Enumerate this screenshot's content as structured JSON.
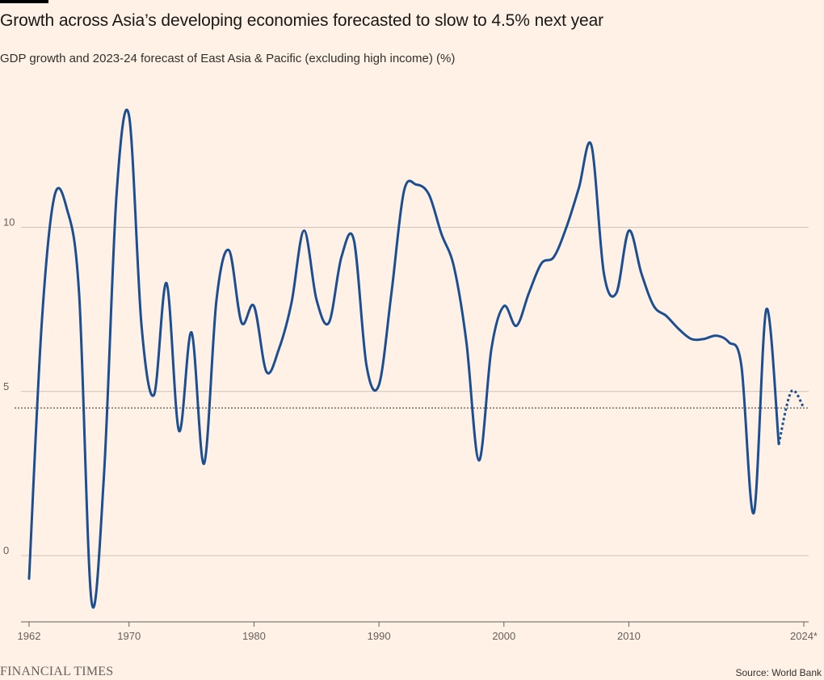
{
  "title": "Growth across Asia’s developing economies forecasted to slow to 4.5% next year",
  "subtitle": "GDP growth and 2023-24 forecast of East Asia & Pacific (excluding high income) (%)",
  "brand": "FINANCIAL TIMES",
  "source": "Source: World Bank",
  "colors": {
    "background": "#FFF1E5",
    "line": "#1B4F91",
    "grid": "#CFC4B9",
    "reference": "#33302E"
  },
  "chart_data": {
    "type": "line",
    "title": "Growth across Asia’s developing economies forecasted to slow to 4.5% next year",
    "subtitle": "GDP growth and 2023-24 forecast of East Asia & Pacific (excluding high income) (%)",
    "xlabel": "",
    "ylabel": "",
    "xlim": [
      1962,
      2024
    ],
    "ylim": [
      -2,
      14
    ],
    "y_ticks": [
      0,
      5,
      10
    ],
    "x_ticks": [
      {
        "value": 1962,
        "label": "1962"
      },
      {
        "value": 1970,
        "label": "1970"
      },
      {
        "value": 1980,
        "label": "1980"
      },
      {
        "value": 1990,
        "label": "1990"
      },
      {
        "value": 2000,
        "label": "2000"
      },
      {
        "value": 2010,
        "label": "2010"
      },
      {
        "value": 2024,
        "label": "2024*"
      }
    ],
    "grid": true,
    "reference_line": {
      "value": 4.5,
      "style": "dotted"
    },
    "series": [
      {
        "style": "solid",
        "x": [
          1962,
          1963,
          1964,
          1965,
          1966,
          1967,
          1968,
          1969,
          1970,
          1971,
          1972,
          1973,
          1974,
          1975,
          1976,
          1977,
          1978,
          1979,
          1980,
          1981,
          1982,
          1983,
          1984,
          1985,
          1986,
          1987,
          1988,
          1989,
          1990,
          1991,
          1992,
          1993,
          1994,
          1995,
          1996,
          1997,
          1998,
          1999,
          2000,
          2001,
          2002,
          2003,
          2004,
          2005,
          2006,
          2007,
          2008,
          2009,
          2010,
          2011,
          2012,
          2013,
          2014,
          2015,
          2016,
          2017,
          2018,
          2019,
          2020,
          2021,
          2022
        ],
        "values": [
          -0.7,
          7.0,
          10.9,
          10.6,
          8.0,
          -1.4,
          2.5,
          11.0,
          13.4,
          7.0,
          4.9,
          8.3,
          3.8,
          6.8,
          2.8,
          7.8,
          9.3,
          7.1,
          7.6,
          5.6,
          6.3,
          7.7,
          9.9,
          7.8,
          7.1,
          9.1,
          9.6,
          5.8,
          5.2,
          8.0,
          11.1,
          11.3,
          11.0,
          9.8,
          8.8,
          6.5,
          2.9,
          6.3,
          7.6,
          7.0,
          8.0,
          8.9,
          9.1,
          10.0,
          11.2,
          12.5,
          8.6,
          8.0,
          9.9,
          8.6,
          7.6,
          7.3,
          6.9,
          6.6,
          6.6,
          6.7,
          6.5,
          5.8,
          1.3,
          7.5,
          3.4
        ]
      },
      {
        "style": "dotted",
        "x": [
          2022,
          2023,
          2024
        ],
        "values": [
          3.4,
          5.0,
          4.5
        ]
      }
    ]
  }
}
